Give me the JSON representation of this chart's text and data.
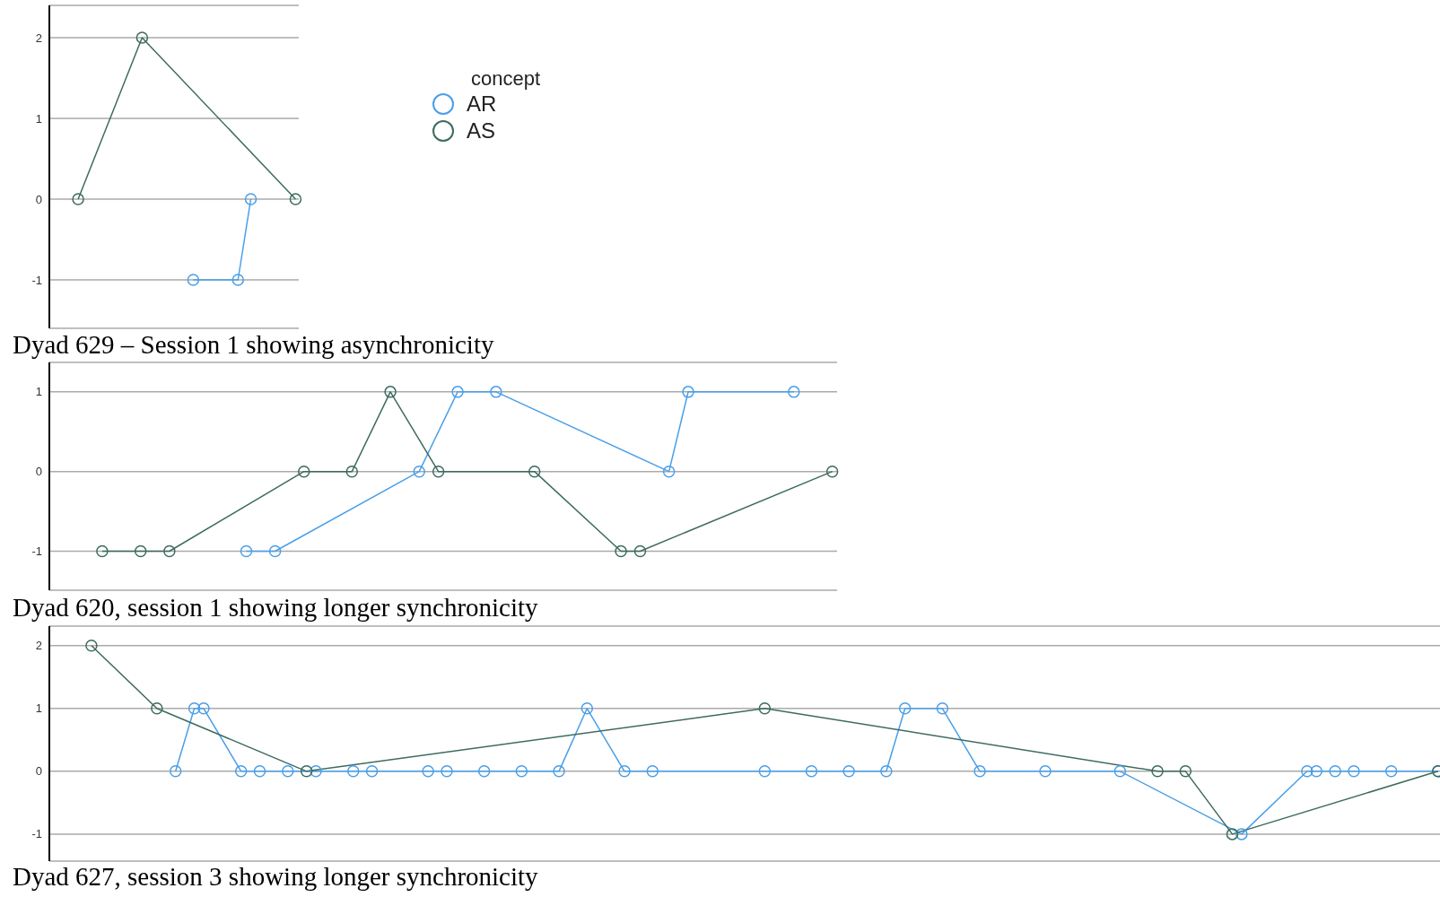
{
  "chart_data": [
    {
      "type": "line",
      "annotations": [
        "Dyad 629 – Session 1 showing asynchronicity"
      ],
      "legend": "top right",
      "legend_title": "concept",
      "marker": "circle",
      "line_style": "solid",
      "grid": "y",
      "tick_labels": "y",
      "ylim": [
        -1.6,
        2.4
      ],
      "yticks": [
        -1,
        0,
        1,
        2
      ],
      "categories": [
        null,
        null,
        null,
        null,
        null,
        null,
        null,
        null,
        null,
        null,
        null,
        null,
        null,
        null,
        null,
        null,
        null,
        null,
        null,
        null,
        null,
        null,
        null,
        null,
        null,
        null,
        null,
        null,
        null,
        null,
        null,
        null,
        null,
        null,
        null,
        null,
        null,
        null,
        null
      ],
      "series": [
        {
          "name": "AR",
          "color": "#4a9fe8",
          "values": [
            null,
            null,
            null,
            null,
            null,
            null,
            null,
            null,
            null,
            null,
            null,
            null,
            null,
            null,
            null,
            null,
            null,
            null,
            null,
            null,
            null,
            null,
            -1,
            null,
            null,
            null,
            null,
            null,
            null,
            -1,
            null,
            0,
            null,
            null,
            null,
            null,
            null,
            null,
            null
          ]
        },
        {
          "name": "AS",
          "color": "#3d6b5f",
          "values": [
            null,
            null,
            null,
            null,
            0,
            null,
            null,
            null,
            null,
            null,
            null,
            null,
            null,
            null,
            2,
            null,
            null,
            null,
            null,
            null,
            null,
            null,
            null,
            null,
            null,
            null,
            null,
            null,
            null,
            null,
            null,
            null,
            null,
            null,
            null,
            null,
            null,
            null,
            0
          ]
        }
      ]
    },
    {
      "type": "line",
      "annotations": [
        "Dyad 620, session 1 showing longer synchronicity"
      ],
      "marker": "circle",
      "line_style": "solid",
      "grid": "y",
      "tick_labels": "y",
      "ylim": [
        -1.49,
        1.37
      ],
      "yticks": [
        -1,
        0,
        1
      ],
      "categories": [
        null,
        null,
        null,
        null,
        null,
        null,
        null,
        null,
        null,
        null,
        null,
        null,
        null,
        null,
        null,
        null,
        null,
        null,
        null,
        null,
        null,
        null,
        null,
        null,
        null,
        null,
        null,
        null,
        null,
        null,
        null,
        null,
        null,
        null,
        null,
        null,
        null,
        null,
        null,
        null,
        null,
        null,
        null,
        null,
        null,
        null,
        null,
        null,
        null,
        null,
        null,
        null,
        null,
        null,
        null,
        null,
        null,
        null,
        null,
        null,
        null,
        null,
        null,
        null,
        null,
        null,
        null,
        null,
        null,
        null,
        null,
        null,
        null,
        null,
        null,
        null,
        null,
        null,
        null,
        null,
        null,
        null
      ],
      "series": [
        {
          "color": "#4a9fe8",
          "values": [
            null,
            null,
            null,
            null,
            null,
            null,
            null,
            null,
            null,
            null,
            null,
            null,
            null,
            null,
            null,
            null,
            null,
            null,
            null,
            null,
            -1,
            null,
            null,
            -1,
            null,
            null,
            null,
            null,
            null,
            null,
            null,
            null,
            null,
            null,
            null,
            null,
            null,
            null,
            0,
            null,
            null,
            null,
            1,
            null,
            null,
            null,
            1,
            null,
            null,
            null,
            null,
            null,
            null,
            null,
            null,
            null,
            null,
            null,
            null,
            null,
            null,
            null,
            null,
            null,
            0,
            null,
            1,
            null,
            null,
            null,
            null,
            null,
            null,
            null,
            null,
            null,
            null,
            1,
            null,
            null,
            null,
            null
          ]
        },
        {
          "color": "#3d6b5f",
          "values": [
            null,
            null,
            null,
            null,
            null,
            -1,
            null,
            null,
            null,
            -1,
            null,
            null,
            -1,
            null,
            null,
            null,
            null,
            null,
            null,
            null,
            null,
            null,
            null,
            null,
            null,
            null,
            0,
            null,
            null,
            null,
            null,
            0,
            null,
            null,
            null,
            1,
            null,
            null,
            null,
            null,
            0,
            null,
            null,
            null,
            null,
            null,
            null,
            null,
            null,
            null,
            0,
            null,
            null,
            null,
            null,
            null,
            null,
            null,
            null,
            -1,
            null,
            -1,
            null,
            null,
            null,
            null,
            null,
            null,
            null,
            null,
            null,
            null,
            null,
            null,
            null,
            null,
            null,
            null,
            null,
            null,
            null,
            0
          ]
        }
      ]
    },
    {
      "type": "line",
      "annotations": [
        "Dyad 627, session 3 showing longer synchronicity"
      ],
      "marker": "circle",
      "line_style": "solid",
      "grid": "y",
      "tick_labels": "y",
      "ylim": [
        -1.43,
        2.31
      ],
      "yticks": [
        -1,
        0,
        1,
        2
      ],
      "categories": [
        null,
        null,
        null,
        null,
        null,
        null,
        null,
        null,
        null,
        null,
        null,
        null,
        null,
        null,
        null,
        null,
        null,
        null,
        null,
        null,
        null,
        null,
        null,
        null,
        null,
        null,
        null,
        null,
        null,
        null,
        null,
        null,
        null,
        null,
        null,
        null,
        null,
        null,
        null,
        null,
        null,
        null,
        null,
        null,
        null,
        null,
        null,
        null,
        null,
        null,
        null,
        null,
        null,
        null,
        null,
        null,
        null,
        null,
        null,
        null,
        null,
        null,
        null,
        null,
        null,
        null,
        null,
        null,
        null,
        null,
        null,
        null,
        null,
        null,
        null,
        null,
        null,
        null,
        null,
        null,
        null,
        null,
        null,
        null,
        null,
        null,
        null,
        null,
        null,
        null,
        null,
        null,
        null,
        null,
        null,
        null,
        null,
        null,
        null,
        null,
        null,
        null,
        null,
        null,
        null,
        null,
        null,
        null,
        null,
        null,
        null,
        null,
        null,
        null,
        null,
        null,
        null,
        null,
        null,
        null,
        null,
        null,
        null,
        null,
        null,
        null,
        null,
        null,
        null,
        null,
        null,
        null,
        null,
        null,
        null,
        null,
        null,
        null,
        null,
        null,
        null,
        null,
        null,
        null,
        null,
        null,
        null,
        null,
        null
      ],
      "series": [
        {
          "color": "#4a9fe8",
          "values": [
            null,
            null,
            null,
            null,
            null,
            null,
            null,
            null,
            null,
            null,
            null,
            null,
            null,
            0,
            null,
            1,
            1,
            null,
            null,
            null,
            0,
            null,
            0,
            null,
            null,
            0,
            null,
            null,
            0,
            null,
            null,
            null,
            0,
            null,
            0,
            null,
            null,
            null,
            null,
            null,
            0,
            null,
            0,
            null,
            null,
            null,
            0,
            null,
            null,
            null,
            0,
            null,
            null,
            null,
            0,
            null,
            null,
            1,
            null,
            null,
            null,
            0,
            null,
            null,
            0,
            null,
            null,
            null,
            null,
            null,
            null,
            null,
            null,
            null,
            null,
            null,
            0,
            null,
            null,
            null,
            null,
            0,
            null,
            null,
            null,
            0,
            null,
            null,
            null,
            0,
            null,
            1,
            null,
            null,
            null,
            1,
            null,
            null,
            null,
            0,
            null,
            null,
            null,
            null,
            null,
            null,
            0,
            null,
            null,
            null,
            null,
            null,
            null,
            null,
            0,
            null,
            null,
            null,
            null,
            null,
            null,
            null,
            null,
            null,
            null,
            null,
            null,
            -1,
            null,
            null,
            null,
            null,
            null,
            null,
            0,
            0,
            null,
            0,
            null,
            0,
            null,
            null,
            null,
            0,
            null,
            null,
            null,
            null,
            0
          ]
        },
        {
          "color": "#3d6b5f",
          "values": [
            null,
            null,
            null,
            null,
            2,
            null,
            null,
            null,
            null,
            null,
            null,
            1,
            null,
            null,
            null,
            null,
            null,
            null,
            null,
            null,
            null,
            null,
            null,
            null,
            null,
            null,
            null,
            0,
            null,
            null,
            null,
            null,
            null,
            null,
            null,
            null,
            null,
            null,
            null,
            null,
            null,
            null,
            null,
            null,
            null,
            null,
            null,
            null,
            null,
            null,
            null,
            null,
            null,
            null,
            null,
            null,
            null,
            null,
            null,
            null,
            null,
            null,
            null,
            null,
            null,
            null,
            null,
            null,
            null,
            null,
            null,
            null,
            null,
            null,
            null,
            null,
            1,
            null,
            null,
            null,
            null,
            null,
            null,
            null,
            null,
            null,
            null,
            null,
            null,
            null,
            null,
            null,
            null,
            null,
            null,
            null,
            null,
            null,
            null,
            null,
            null,
            null,
            null,
            null,
            null,
            null,
            null,
            null,
            null,
            null,
            null,
            null,
            null,
            null,
            null,
            null,
            null,
            null,
            0,
            null,
            null,
            0,
            null,
            null,
            null,
            null,
            -1,
            null,
            null,
            null,
            null,
            null,
            null,
            null,
            null,
            null,
            null,
            null,
            null,
            null,
            null,
            null,
            null,
            null,
            null,
            null,
            null,
            null,
            0
          ]
        }
      ]
    }
  ]
}
